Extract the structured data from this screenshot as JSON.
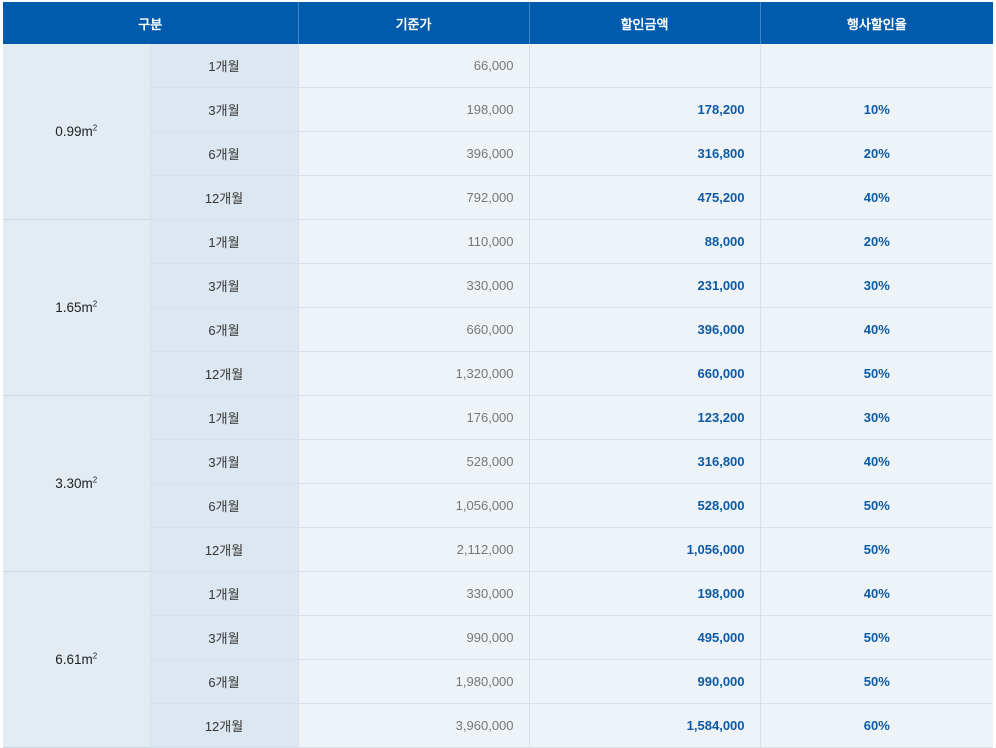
{
  "table": {
    "headers": [
      "구분",
      "기준가",
      "할인금액",
      "행사할인율"
    ],
    "groups": [
      {
        "size": "0.99m",
        "unit_sup": "2",
        "rows": [
          {
            "period": "1개월",
            "base": "66,000",
            "discount": "",
            "rate": ""
          },
          {
            "period": "3개월",
            "base": "198,000",
            "discount": "178,200",
            "rate": "10%"
          },
          {
            "period": "6개월",
            "base": "396,000",
            "discount": "316,800",
            "rate": "20%"
          },
          {
            "period": "12개월",
            "base": "792,000",
            "discount": "475,200",
            "rate": "40%"
          }
        ]
      },
      {
        "size": "1.65m",
        "unit_sup": "2",
        "rows": [
          {
            "period": "1개월",
            "base": "110,000",
            "discount": "88,000",
            "rate": "20%"
          },
          {
            "period": "3개월",
            "base": "330,000",
            "discount": "231,000",
            "rate": "30%"
          },
          {
            "period": "6개월",
            "base": "660,000",
            "discount": "396,000",
            "rate": "40%"
          },
          {
            "period": "12개월",
            "base": "1,320,000",
            "discount": "660,000",
            "rate": "50%"
          }
        ]
      },
      {
        "size": "3.30m",
        "unit_sup": "2",
        "rows": [
          {
            "period": "1개월",
            "base": "176,000",
            "discount": "123,200",
            "rate": "30%"
          },
          {
            "period": "3개월",
            "base": "528,000",
            "discount": "316,800",
            "rate": "40%"
          },
          {
            "period": "6개월",
            "base": "1,056,000",
            "discount": "528,000",
            "rate": "50%"
          },
          {
            "period": "12개월",
            "base": "2,112,000",
            "discount": "1,056,000",
            "rate": "50%"
          }
        ]
      },
      {
        "size": "6.61m",
        "unit_sup": "2",
        "rows": [
          {
            "period": "1개월",
            "base": "330,000",
            "discount": "198,000",
            "rate": "40%"
          },
          {
            "period": "3개월",
            "base": "990,000",
            "discount": "495,000",
            "rate": "50%"
          },
          {
            "period": "6개월",
            "base": "1,980,000",
            "discount": "990,000",
            "rate": "50%"
          },
          {
            "period": "12개월",
            "base": "3,960,000",
            "discount": "1,584,000",
            "rate": "60%"
          }
        ]
      }
    ]
  }
}
